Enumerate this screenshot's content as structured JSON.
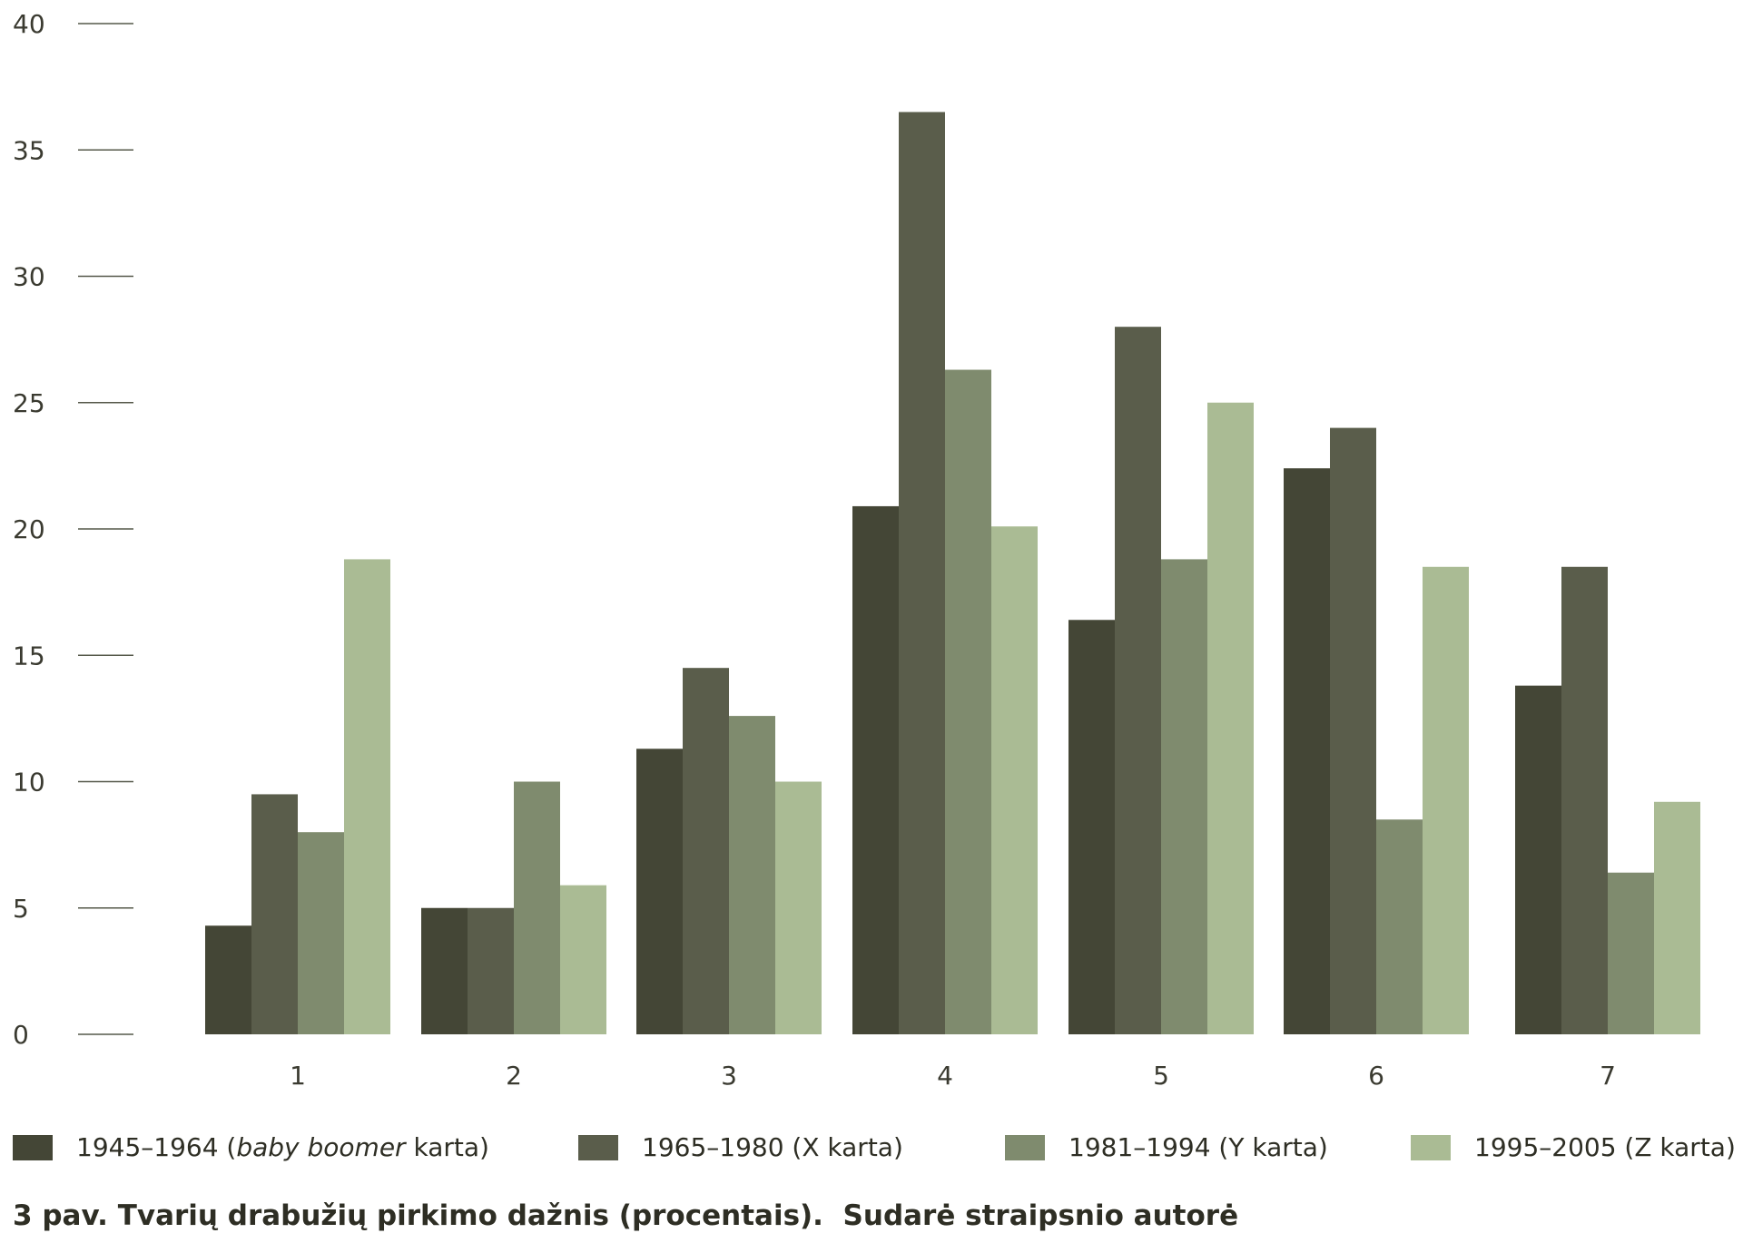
{
  "chart_data": {
    "type": "bar",
    "categories": [
      "1",
      "2",
      "3",
      "4",
      "5",
      "6",
      "7"
    ],
    "series": [
      {
        "name": "1945–1964 (baby boomer karta)",
        "color": "#444636",
        "values": [
          4.3,
          5.0,
          11.3,
          20.9,
          16.4,
          22.4,
          13.8
        ]
      },
      {
        "name": "1965–1980 (X karta)",
        "color": "#5a5d4b",
        "values": [
          9.5,
          5.0,
          14.5,
          36.5,
          28.0,
          24.0,
          18.5
        ]
      },
      {
        "name": "1981–1994 (Y karta)",
        "color": "#7f8b6e",
        "values": [
          8.0,
          10.0,
          12.6,
          26.3,
          18.8,
          8.5,
          6.4
        ]
      },
      {
        "name": "1995–2005 (Z karta)",
        "color": "#aabb94",
        "values": [
          18.8,
          5.9,
          10.0,
          20.1,
          25.0,
          18.5,
          9.2
        ]
      }
    ],
    "yticks": [
      "0",
      "5",
      "10",
      "15",
      "20",
      "25",
      "30",
      "35",
      "40"
    ],
    "ylim": [
      0,
      40
    ],
    "grid": false,
    "legend_position": "bottom",
    "caption": "3 pav. Tvarių drabužių pirkimo dažnis (procentais).  Sudarė straipsnio autorė"
  },
  "legend": [
    {
      "pre": "1945–1964 (",
      "italic": "baby boomer",
      "post": " karta)"
    },
    {
      "pre": "1965–1980 (X karta)",
      "italic": "",
      "post": ""
    },
    {
      "pre": "1981–1994 (Y karta)",
      "italic": "",
      "post": ""
    },
    {
      "pre": "1995–2005 (Z karta)",
      "italic": "",
      "post": ""
    }
  ]
}
